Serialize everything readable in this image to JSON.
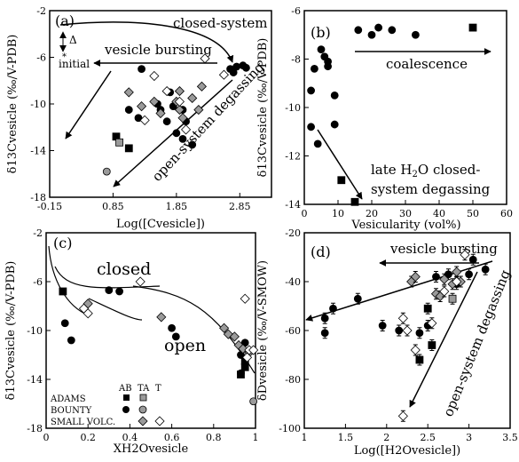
{
  "chart_data": [
    {
      "panel": "(a)",
      "type": "scatter",
      "xlabel": "Log([Cvesicle])",
      "ylabel": "δ13Cvesicle (‰/V-PDB)",
      "xlim": [
        -0.15,
        3.35
      ],
      "ylim": [
        -18,
        -2
      ],
      "xticks": [
        "-0.15",
        "0.85",
        "1.85",
        "2.85"
      ],
      "yticks": [
        "-2",
        "-6",
        "-10",
        "-14",
        "-18"
      ],
      "annotations": [
        "closed-system",
        "vesicle bursting",
        "open-system degassing",
        "Δ",
        "initial"
      ],
      "series": [
        {
          "marker": "circle-black",
          "points": [
            [
              1.3,
              -7.0
            ],
            [
              1.1,
              -10.5
            ],
            [
              1.25,
              -11.2
            ],
            [
              1.55,
              -10.0
            ],
            [
              1.6,
              -10.5
            ],
            [
              1.75,
              -9.0
            ],
            [
              1.8,
              -10.2
            ],
            [
              1.7,
              -11.5
            ],
            [
              1.95,
              -10.5
            ],
            [
              2.0,
              -11.5
            ],
            [
              1.85,
              -12.5
            ],
            [
              1.95,
              -13.0
            ],
            [
              2.1,
              -13.5
            ],
            [
              2.7,
              -7.0
            ],
            [
              2.8,
              -6.8
            ],
            [
              2.9,
              -6.7
            ],
            [
              2.95,
              -6.9
            ],
            [
              2.75,
              -7.3
            ]
          ]
        },
        {
          "marker": "circle-gray",
          "points": [
            [
              0.75,
              -15.8
            ]
          ]
        },
        {
          "marker": "diamond-gray",
          "points": [
            [
              1.5,
              -9.8
            ],
            [
              1.6,
              -10.8
            ],
            [
              1.1,
              -9.0
            ],
            [
              1.3,
              -10.2
            ],
            [
              1.85,
              -9.8
            ],
            [
              1.9,
              -8.9
            ],
            [
              1.9,
              -10.5
            ],
            [
              2.25,
              -8.5
            ],
            [
              2.1,
              -9.5
            ],
            [
              1.95,
              -11.2
            ],
            [
              2.2,
              -10.5
            ]
          ]
        },
        {
          "marker": "diamond-open",
          "points": [
            [
              1.5,
              -7.6
            ],
            [
              1.7,
              -8.9
            ],
            [
              1.35,
              -11.4
            ],
            [
              2.3,
              -6.1
            ],
            [
              2.6,
              -7.5
            ],
            [
              2.0,
              -12.2
            ],
            [
              1.9,
              -9.8
            ]
          ]
        },
        {
          "marker": "square-black",
          "points": [
            [
              0.9,
              -12.8
            ],
            [
              1.1,
              -13.8
            ]
          ]
        },
        {
          "marker": "square-gray",
          "points": [
            [
              0.95,
              -13.3
            ]
          ]
        }
      ]
    },
    {
      "panel": "(b)",
      "type": "scatter",
      "xlabel": "Vesicularity (vol%)",
      "ylabel": "δ13Cvesicle (‰/V-PDB)",
      "xlim": [
        0,
        60
      ],
      "ylim": [
        -14,
        -6
      ],
      "xticks": [
        "0",
        "10",
        "20",
        "30",
        "40",
        "50",
        "60"
      ],
      "yticks": [
        "-6",
        "-8",
        "-10",
        "-12",
        "-14"
      ],
      "annotations": [
        "coalescence",
        "late H2O closed-system degassing"
      ],
      "series": [
        {
          "marker": "circle-black",
          "points": [
            [
              2,
              -10.8
            ],
            [
              2,
              -9.3
            ],
            [
              3,
              -8.4
            ],
            [
              4,
              -11.5
            ],
            [
              5,
              -7.6
            ],
            [
              6,
              -7.9
            ],
            [
              7,
              -8.3
            ],
            [
              7,
              -8.1
            ],
            [
              9,
              -9.5
            ],
            [
              9,
              -10.7
            ],
            [
              16,
              -6.8
            ],
            [
              20,
              -7.0
            ],
            [
              22,
              -6.7
            ],
            [
              26,
              -6.8
            ],
            [
              33,
              -7.0
            ]
          ]
        },
        {
          "marker": "square-black",
          "points": [
            [
              11,
              -13.0
            ],
            [
              15,
              -13.9
            ],
            [
              50,
              -6.7
            ]
          ]
        }
      ]
    },
    {
      "panel": "(c)",
      "type": "scatter",
      "xlabel": "XH2Ovesicle",
      "ylabel": "δ13Cvesicle (‰/V-PDB)",
      "xlim": [
        0,
        1
      ],
      "ylim": [
        -18,
        -2
      ],
      "xticks": [
        "0",
        "0.2",
        "0.4",
        "0.6",
        "0.8",
        "1"
      ],
      "yticks": [
        "-2",
        "-6",
        "-10",
        "-14",
        "-18"
      ],
      "annotations": [
        "closed",
        "open"
      ],
      "legend": {
        "columns": [
          "AB",
          "TA",
          "T"
        ],
        "rows": [
          "ADAMS",
          "BOUNTY",
          "SMALL VOLC."
        ]
      },
      "series": [
        {
          "marker": "square-black",
          "points": [
            [
              0.08,
              -6.8
            ],
            [
              0.95,
              -12.5
            ],
            [
              0.93,
              -13.6
            ],
            [
              0.95,
              -13.0
            ]
          ]
        },
        {
          "marker": "circle-black",
          "points": [
            [
              0.09,
              -9.4
            ],
            [
              0.12,
              -10.8
            ],
            [
              0.3,
              -6.7
            ],
            [
              0.35,
              -6.8
            ],
            [
              0.6,
              -9.8
            ],
            [
              0.62,
              -10.5
            ],
            [
              0.93,
              -12.0
            ],
            [
              0.95,
              -11.0
            ],
            [
              0.93,
              -13.5
            ]
          ]
        },
        {
          "marker": "circle-gray",
          "points": [
            [
              0.99,
              -15.8
            ]
          ]
        },
        {
          "marker": "diamond-gray",
          "points": [
            [
              0.2,
              -7.8
            ],
            [
              0.55,
              -8.9
            ],
            [
              0.85,
              -9.8
            ],
            [
              0.87,
              -10.3
            ],
            [
              0.9,
              -10.5
            ],
            [
              0.92,
              -11.2
            ],
            [
              0.94,
              -11.5
            ],
            [
              0.97,
              -11.8
            ]
          ]
        },
        {
          "marker": "diamond-open",
          "points": [
            [
              0.18,
              -8.2
            ],
            [
              0.2,
              -8.6
            ],
            [
              0.45,
              -6.0
            ],
            [
              0.95,
              -7.4
            ],
            [
              0.97,
              -11.6
            ],
            [
              0.99,
              -11.6
            ],
            [
              0.96,
              -12.2
            ]
          ]
        }
      ]
    },
    {
      "panel": "(d)",
      "type": "scatter",
      "xlabel": "Log([H2Ovesicle])",
      "ylabel": "δDvesicle (‰/V-SMOW)",
      "xlim": [
        1,
        3.5
      ],
      "ylim": [
        -100,
        -20
      ],
      "xticks": [
        "1",
        "1.5",
        "2",
        "2.5",
        "3",
        "3.5"
      ],
      "yticks": [
        "-20",
        "-40",
        "-60",
        "-80",
        "-100"
      ],
      "annotations": [
        "vesicle bursting",
        "open-system degassing"
      ],
      "series": [
        {
          "marker": "circle-black",
          "points": [
            [
              1.25,
              -55
            ],
            [
              1.25,
              -61
            ],
            [
              1.35,
              -51
            ],
            [
              1.65,
              -47
            ],
            [
              1.95,
              -58
            ],
            [
              2.15,
              -60
            ],
            [
              2.4,
              -61
            ],
            [
              2.5,
              -58
            ],
            [
              2.6,
              -38
            ],
            [
              2.75,
              -37
            ],
            [
              2.85,
              -41
            ],
            [
              3.0,
              -37
            ],
            [
              3.05,
              -31
            ],
            [
              3.2,
              -35
            ]
          ]
        },
        {
          "marker": "square-black",
          "points": [
            [
              2.4,
              -72
            ],
            [
              2.5,
              -51
            ],
            [
              2.55,
              -66
            ]
          ]
        },
        {
          "marker": "square-gray",
          "points": [
            [
              2.8,
              -47
            ]
          ]
        },
        {
          "marker": "diamond-gray",
          "points": [
            [
              2.3,
              -40
            ],
            [
              2.35,
              -38
            ],
            [
              2.6,
              -45
            ],
            [
              2.65,
              -46
            ],
            [
              2.7,
              -39
            ],
            [
              2.8,
              -41
            ],
            [
              2.85,
              -36
            ],
            [
              2.9,
              -40
            ]
          ]
        },
        {
          "marker": "diamond-open",
          "points": [
            [
              2.2,
              -55
            ],
            [
              2.25,
              -60
            ],
            [
              2.35,
              -68
            ],
            [
              2.55,
              -57
            ],
            [
              2.7,
              -44
            ],
            [
              2.95,
              -29
            ],
            [
              2.85,
              -40
            ],
            [
              2.2,
              -95
            ]
          ]
        }
      ]
    }
  ]
}
